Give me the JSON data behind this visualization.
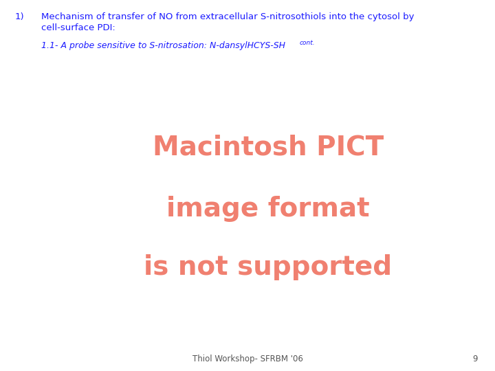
{
  "background_color": "#ffffff",
  "title_number": "1)",
  "title_text_line1": "Mechanism of transfer of NO from extracellular S-nitrosothiols into the cytosol by",
  "title_text_line2": "cell-surface PDI:",
  "subtitle_full": "1.1- A probe sensitive to S-nitrosation: N-dansylHCYS-SH",
  "subtitle_super": "cont.",
  "title_color": "#1a1aff",
  "subtitle_color": "#1a1aff",
  "pict_line1": "Macintosh PICT",
  "pict_line2": "image format",
  "pict_line3": "is not supported",
  "pict_color": "#f08070",
  "footer_text": "Thiol Workshop- SFRBM '06",
  "footer_page": "9",
  "footer_color": "#555555",
  "title_fontsize": 9.5,
  "subtitle_fontsize": 9.0,
  "pict_fontsize": 28,
  "footer_fontsize": 8.5
}
